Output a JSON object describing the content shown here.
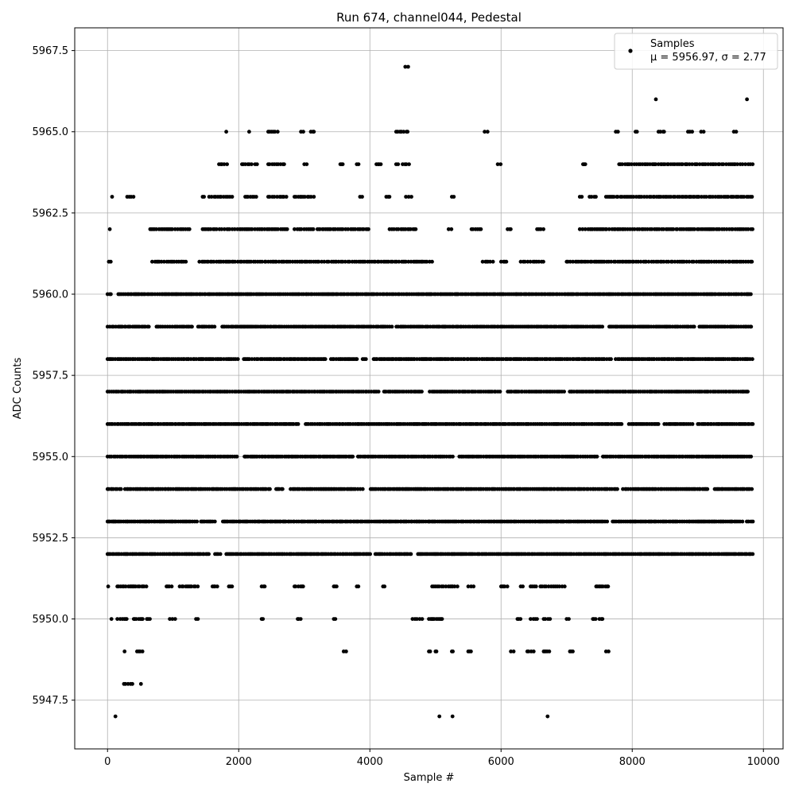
{
  "chart_data": {
    "type": "scatter",
    "title": "Run 674, channel044, Pedestal",
    "xlabel": "Sample #",
    "ylabel": "ADC Counts",
    "xlim": [
      -500,
      10300
    ],
    "ylim": [
      5946,
      5968.2
    ],
    "xticks": [
      0,
      2000,
      4000,
      6000,
      8000,
      10000
    ],
    "xtick_labels": [
      "0",
      "2000",
      "4000",
      "6000",
      "8000",
      "10000"
    ],
    "yticks": [
      5947.5,
      5950.0,
      5952.5,
      5955.0,
      5957.5,
      5960.0,
      5962.5,
      5965.0,
      5967.5
    ],
    "ytick_labels": [
      "5947.5",
      "5950.0",
      "5952.5",
      "5955.0",
      "5957.5",
      "5960.0",
      "5962.5",
      "5965.0",
      "5967.5"
    ],
    "grid": true,
    "legend": {
      "position": "top-right",
      "entries": [
        {
          "line1": "Samples",
          "line2": "μ = 5956.97, σ = 2.77",
          "marker": "circle",
          "color": "#000000"
        }
      ]
    },
    "marker_color": "#000000",
    "series": [
      {
        "name": "Samples",
        "x_start": 0,
        "x_end": 9840,
        "mean": 5956.97,
        "std": 2.77,
        "dense_levels": [
          5952,
          5953,
          5954,
          5955,
          5956,
          5957,
          5958,
          5959,
          5960
        ],
        "sparse_level_ranges": [
          {
            "y": 5961,
            "ranges": [
              [
                20,
                70
              ],
              [
                680,
                1200
              ],
              [
                1400,
                4950
              ],
              [
                5720,
                5900
              ],
              [
                6000,
                6100
              ],
              [
                6300,
                6650
              ],
              [
                7000,
                9840
              ]
            ]
          },
          {
            "y": 5962,
            "ranges": [
              [
                30,
                40
              ],
              [
                650,
                1250
              ],
              [
                1450,
                2750
              ],
              [
                2850,
                3150
              ],
              [
                3200,
                4000
              ],
              [
                4300,
                4700
              ],
              [
                5200,
                5250
              ],
              [
                5550,
                5700
              ],
              [
                6100,
                6150
              ],
              [
                6550,
                6650
              ],
              [
                7200,
                9840
              ]
            ]
          },
          {
            "y": 5963,
            "ranges": [
              [
                60,
                80
              ],
              [
                300,
                400
              ],
              [
                1450,
                1500
              ],
              [
                1550,
                1900
              ],
              [
                2100,
                2300
              ],
              [
                2450,
                2750
              ],
              [
                2850,
                3150
              ],
              [
                3850,
                3900
              ],
              [
                4250,
                4300
              ],
              [
                4550,
                4650
              ],
              [
                5250,
                5300
              ],
              [
                7200,
                7250
              ],
              [
                7350,
                7450
              ],
              [
                7600,
                9840
              ]
            ]
          },
          {
            "y": 5964,
            "ranges": [
              [
                1700,
                1850
              ],
              [
                2050,
                2200
              ],
              [
                2250,
                2300
              ],
              [
                2450,
                2700
              ],
              [
                3000,
                3050
              ],
              [
                3550,
                3600
              ],
              [
                3800,
                3850
              ],
              [
                4100,
                4200
              ],
              [
                4400,
                4450
              ],
              [
                4500,
                4600
              ],
              [
                5950,
                6000
              ],
              [
                7250,
                7300
              ],
              [
                7800,
                9840
              ]
            ]
          },
          {
            "y": 5965,
            "ranges": [
              [
                1800,
                1820
              ],
              [
                2150,
                2170
              ],
              [
                2450,
                2600
              ],
              [
                2950,
                3000
              ],
              [
                3100,
                3150
              ],
              [
                4400,
                4600
              ],
              [
                5750,
                5800
              ],
              [
                7750,
                7800
              ],
              [
                8050,
                8100
              ],
              [
                8400,
                8500
              ],
              [
                8850,
                8950
              ],
              [
                9050,
                9100
              ],
              [
                9550,
                9600
              ]
            ]
          },
          {
            "y": 5966,
            "ranges": [
              [
                8350,
                8370
              ],
              [
                9740,
                9760
              ]
            ]
          },
          {
            "y": 5967,
            "ranges": [
              [
                4540,
                4600
              ]
            ]
          },
          {
            "y": 5951,
            "ranges": [
              [
                0,
                20
              ],
              [
                150,
                600
              ],
              [
                900,
                1000
              ],
              [
                1100,
                1400
              ],
              [
                1600,
                1700
              ],
              [
                1850,
                1900
              ],
              [
                2350,
                2400
              ],
              [
                2850,
                3000
              ],
              [
                3450,
                3500
              ],
              [
                3800,
                3850
              ],
              [
                4200,
                4250
              ],
              [
                4950,
                5350
              ],
              [
                5500,
                5600
              ],
              [
                6000,
                6100
              ],
              [
                6300,
                6350
              ],
              [
                6450,
                6550
              ],
              [
                6600,
                7000
              ],
              [
                7450,
                7650
              ]
            ]
          },
          {
            "y": 5950,
            "ranges": [
              [
                50,
                70
              ],
              [
                150,
                300
              ],
              [
                400,
                550
              ],
              [
                600,
                650
              ],
              [
                950,
                1050
              ],
              [
                1350,
                1400
              ],
              [
                2350,
                2400
              ],
              [
                2900,
                2950
              ],
              [
                3450,
                3500
              ],
              [
                4650,
                4800
              ],
              [
                4900,
                5100
              ],
              [
                6250,
                6300
              ],
              [
                6450,
                6550
              ],
              [
                6650,
                6750
              ],
              [
                7000,
                7050
              ],
              [
                7400,
                7450
              ],
              [
                7500,
                7550
              ]
            ]
          },
          {
            "y": 5949,
            "ranges": [
              [
                250,
                270
              ],
              [
                450,
                550
              ],
              [
                3600,
                3650
              ],
              [
                4900,
                4950
              ],
              [
                5000,
                5050
              ],
              [
                5250,
                5300
              ],
              [
                5500,
                5550
              ],
              [
                6150,
                6200
              ],
              [
                6400,
                6500
              ],
              [
                6650,
                6750
              ],
              [
                7050,
                7100
              ],
              [
                7600,
                7650
              ]
            ]
          },
          {
            "y": 5948,
            "ranges": [
              [
                250,
                400
              ],
              [
                500,
                520
              ]
            ]
          },
          {
            "y": 5947,
            "ranges": [
              [
                110,
                130
              ],
              [
                5050,
                5070
              ],
              [
                5250,
                5270
              ],
              [
                6700,
                6720
              ]
            ]
          }
        ]
      }
    ]
  }
}
